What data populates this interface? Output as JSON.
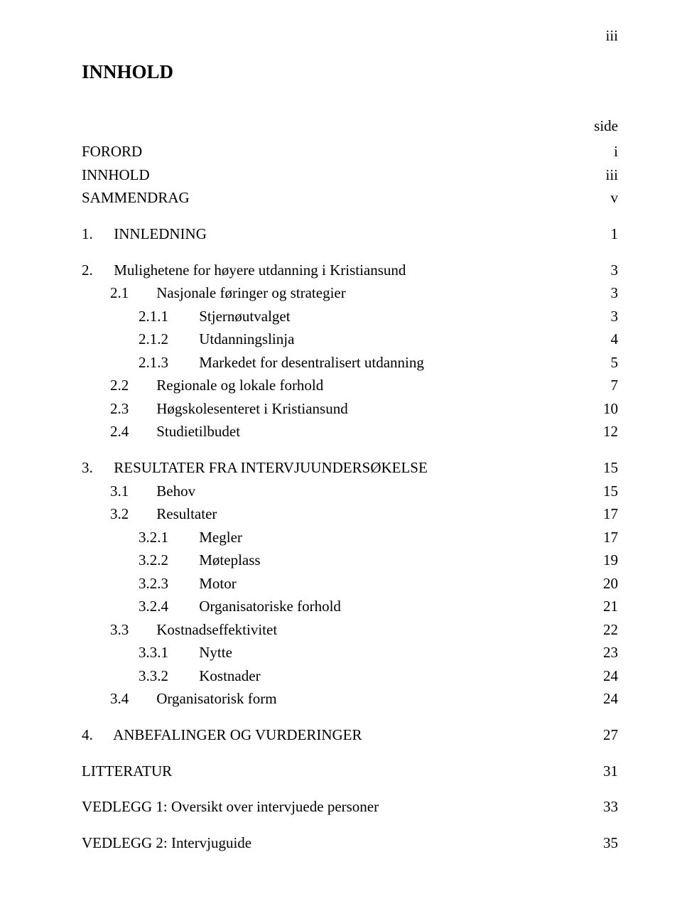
{
  "page_roman": "iii",
  "title": "INNHOLD",
  "side_label": "side",
  "front": [
    {
      "label": "FORORD",
      "page": "i"
    },
    {
      "label": "INNHOLD",
      "page": "iii"
    },
    {
      "label": "SAMMENDRAG",
      "page": "v"
    }
  ],
  "s1": {
    "num": "1.",
    "label": "INNLEDNING",
    "page": "1"
  },
  "s2": {
    "num": "2.",
    "label": "Mulighetene for høyere utdanning i Kristiansund",
    "page": "3",
    "c1": {
      "num": "2.1",
      "label": "Nasjonale føringer og strategier",
      "page": "3"
    },
    "c11": {
      "num": "2.1.1",
      "label": "Stjernøutvalget",
      "page": "3"
    },
    "c12": {
      "num": "2.1.2",
      "label": "Utdanningslinja",
      "page": "4"
    },
    "c13": {
      "num": "2.1.3",
      "label": "Markedet for desentralisert utdanning",
      "page": "5"
    },
    "c2": {
      "num": "2.2",
      "label": "Regionale og lokale forhold",
      "page": "7"
    },
    "c3": {
      "num": "2.3",
      "label": "Høgskolesenteret i Kristiansund",
      "page": "10"
    },
    "c4": {
      "num": "2.4",
      "label": "Studietilbudet",
      "page": "12"
    }
  },
  "s3": {
    "num": "3.",
    "label": "RESULTATER FRA INTERVJUUNDERSØKELSE",
    "page": "15",
    "c1": {
      "num": "3.1",
      "label": "Behov",
      "page": "15"
    },
    "c2": {
      "num": "3.2",
      "label": "Resultater",
      "page": "17"
    },
    "c21": {
      "num": "3.2.1",
      "label": "Megler",
      "page": "17"
    },
    "c22": {
      "num": "3.2.2",
      "label": "Møteplass",
      "page": "19"
    },
    "c23": {
      "num": "3.2.3",
      "label": "Motor",
      "page": "20"
    },
    "c24": {
      "num": "3.2.4",
      "label": "Organisatoriske forhold",
      "page": "21"
    },
    "c3": {
      "num": "3.3",
      "label": "Kostnadseffektivitet",
      "page": "22"
    },
    "c31": {
      "num": "3.3.1",
      "label": "Nytte",
      "page": "23"
    },
    "c32": {
      "num": "3.3.2",
      "label": "Kostnader",
      "page": "24"
    },
    "c4": {
      "num": "3.4",
      "label": "Organisatorisk form",
      "page": "24"
    }
  },
  "s4": {
    "num": "4.",
    "label": "ANBEFALINGER OG VURDERINGER",
    "page": "27"
  },
  "lit": {
    "label": "LITTERATUR",
    "page": "31"
  },
  "ved1": {
    "label": "VEDLEGG 1: Oversikt over intervjuede personer",
    "page": "33"
  },
  "ved2": {
    "label": "VEDLEGG 2: Intervjuguide",
    "page": "35"
  }
}
